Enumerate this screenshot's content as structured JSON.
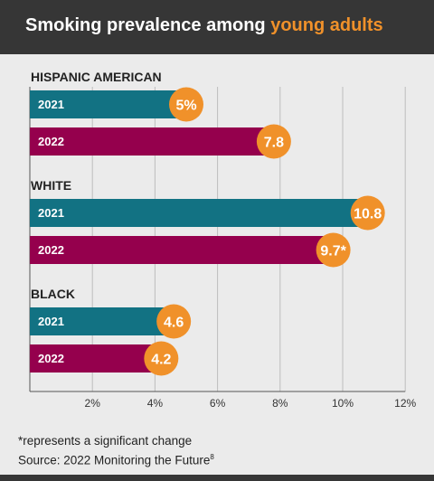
{
  "header": {
    "title_main": "Smoking prevalence among",
    "title_highlight": "young adults"
  },
  "colors": {
    "bar_2021": "#127283",
    "bar_2022": "#95004d",
    "badge": "#f0912a",
    "header_bg": "#363636",
    "background": "#ebebeb"
  },
  "chart_data": {
    "type": "bar",
    "orientation": "horizontal",
    "xlim": [
      0,
      12
    ],
    "x_ticks": [
      2,
      4,
      6,
      8,
      10,
      12
    ],
    "x_tick_labels": [
      "2%",
      "4%",
      "6%",
      "8%",
      "10%",
      "12%"
    ],
    "grid": true,
    "groups": [
      {
        "name": "HISPANIC AMERICAN",
        "bars": [
          {
            "year": "2021",
            "value": 5,
            "label": "5%"
          },
          {
            "year": "2022",
            "value": 7.8,
            "label": "7.8"
          }
        ]
      },
      {
        "name": "WHITE",
        "bars": [
          {
            "year": "2021",
            "value": 10.8,
            "label": "10.8"
          },
          {
            "year": "2022",
            "value": 9.7,
            "label": "9.7*"
          }
        ]
      },
      {
        "name": "BLACK",
        "bars": [
          {
            "year": "2021",
            "value": 4.6,
            "label": "4.6"
          },
          {
            "year": "2022",
            "value": 4.2,
            "label": "4.2"
          }
        ]
      }
    ]
  },
  "footnotes": {
    "significance": "*represents a significant change",
    "source": "Source: 2022 Monitoring the Future",
    "source_ref": "8"
  }
}
